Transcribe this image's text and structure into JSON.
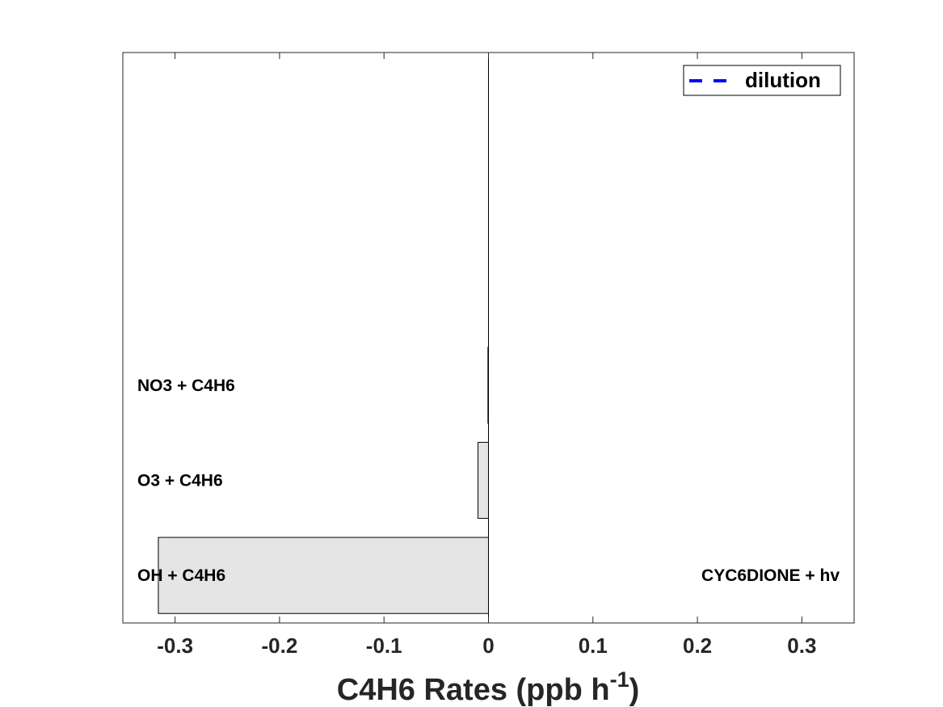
{
  "chart_data": {
    "type": "bar",
    "orientation": "horizontal",
    "xlabel_main": "C4H6 Rates (ppb h",
    "xlabel_sup": "-1",
    "xlabel_tail": ")",
    "xlim": [
      -0.35,
      0.35
    ],
    "xticks": [
      -0.3,
      -0.2,
      -0.1,
      0,
      0.1,
      0.2,
      0.3
    ],
    "xtick_labels": [
      "-0.3",
      "-0.2",
      "-0.1",
      "0",
      "0.1",
      "0.2",
      "0.3"
    ],
    "num_slots": 6,
    "negative_bars": [
      {
        "label": "OH + C4H6",
        "value": -0.316
      },
      {
        "label": "O3 + C4H6",
        "value": -0.01
      },
      {
        "label": "NO3 + C4H6",
        "value": -0.0005
      }
    ],
    "positive_bars": [
      {
        "label": "CYC6DIONE + hv",
        "value": 0.0
      }
    ],
    "legend": {
      "label": "dilution",
      "position": "top-right",
      "line_style": "dashed",
      "color": "#0000ff"
    },
    "bar_fill": "#e5e5e5",
    "bar_edge": "#000000",
    "grid": false
  }
}
